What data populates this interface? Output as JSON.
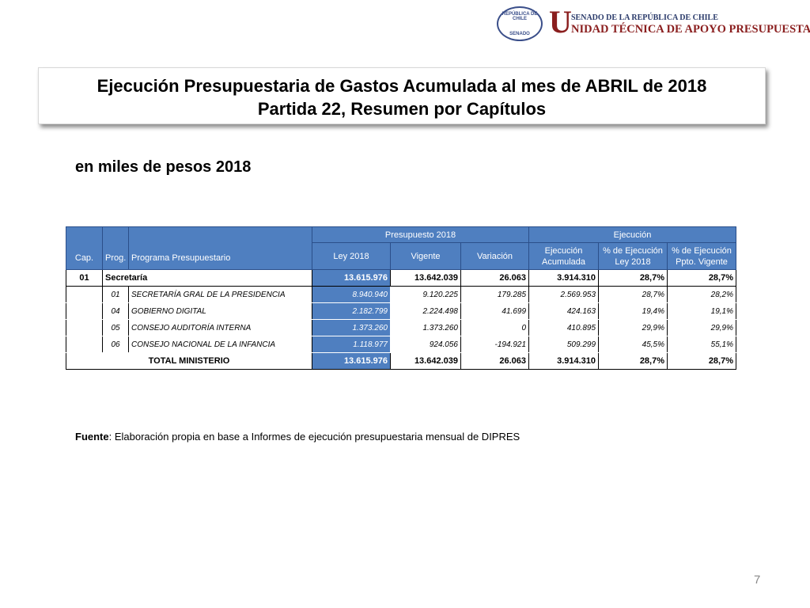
{
  "header": {
    "seal_top": "REPÚBLICA DE CHILE",
    "seal_bottom": "SENADO",
    "logo_initial": "U",
    "logo_line1": "SENADO DE LA REPÚBLICA DE CHILE",
    "logo_line2": "NIDAD TÉCNICA DE APOYO PRESUPUESTARIO"
  },
  "title": {
    "line1": "Ejecución Presupuestaria de Gastos Acumulada al mes de ABRIL de 2018",
    "line2": "Partida 22, Resumen por Capítulos"
  },
  "subtitle": "en miles de pesos 2018",
  "table": {
    "group_headers": [
      "Presupuesto 2018",
      "Ejecución"
    ],
    "columns": [
      "Cap.",
      "Prog.",
      "Programa Presupuestario",
      "Ley 2018",
      "Vigente",
      "Variación",
      "Ejecución Acumulada",
      "% de Ejecución Ley 2018",
      "% de Ejecución Ppto. Vigente"
    ],
    "chapter": {
      "cap": "01",
      "name": "Secretaría",
      "values": [
        "13.615.976",
        "13.642.039",
        "26.063",
        "3.914.310",
        "28,7%",
        "28,7%"
      ]
    },
    "programs": [
      {
        "prog": "01",
        "name": "SECRETARÍA GRAL DE LA PRESIDENCIA",
        "values": [
          "8.940.940",
          "9.120.225",
          "179.285",
          "2.569.953",
          "28,7%",
          "28,2%"
        ]
      },
      {
        "prog": "04",
        "name": "GOBIERNO DIGITAL",
        "values": [
          "2.182.799",
          "2.224.498",
          "41.699",
          "424.163",
          "19,4%",
          "19,1%"
        ]
      },
      {
        "prog": "05",
        "name": "CONSEJO AUDITORÍA INTERNA",
        "values": [
          "1.373.260",
          "1.373.260",
          "0",
          "410.895",
          "29,9%",
          "29,9%"
        ]
      },
      {
        "prog": "06",
        "name": "CONSEJO NACIONAL DE LA INFANCIA",
        "values": [
          "1.118.977",
          "924.056",
          "-194.921",
          "509.299",
          "45,5%",
          "55,1%"
        ]
      }
    ],
    "total": {
      "label": "TOTAL MINISTERIO",
      "values": [
        "13.615.976",
        "13.642.039",
        "26.063",
        "3.914.310",
        "28,7%",
        "28,7%"
      ]
    }
  },
  "source": {
    "label": "Fuente",
    "text": ": Elaboración propia en base  a Informes de ejecución presupuestaria mensual de DIPRES"
  },
  "page_number": "7"
}
